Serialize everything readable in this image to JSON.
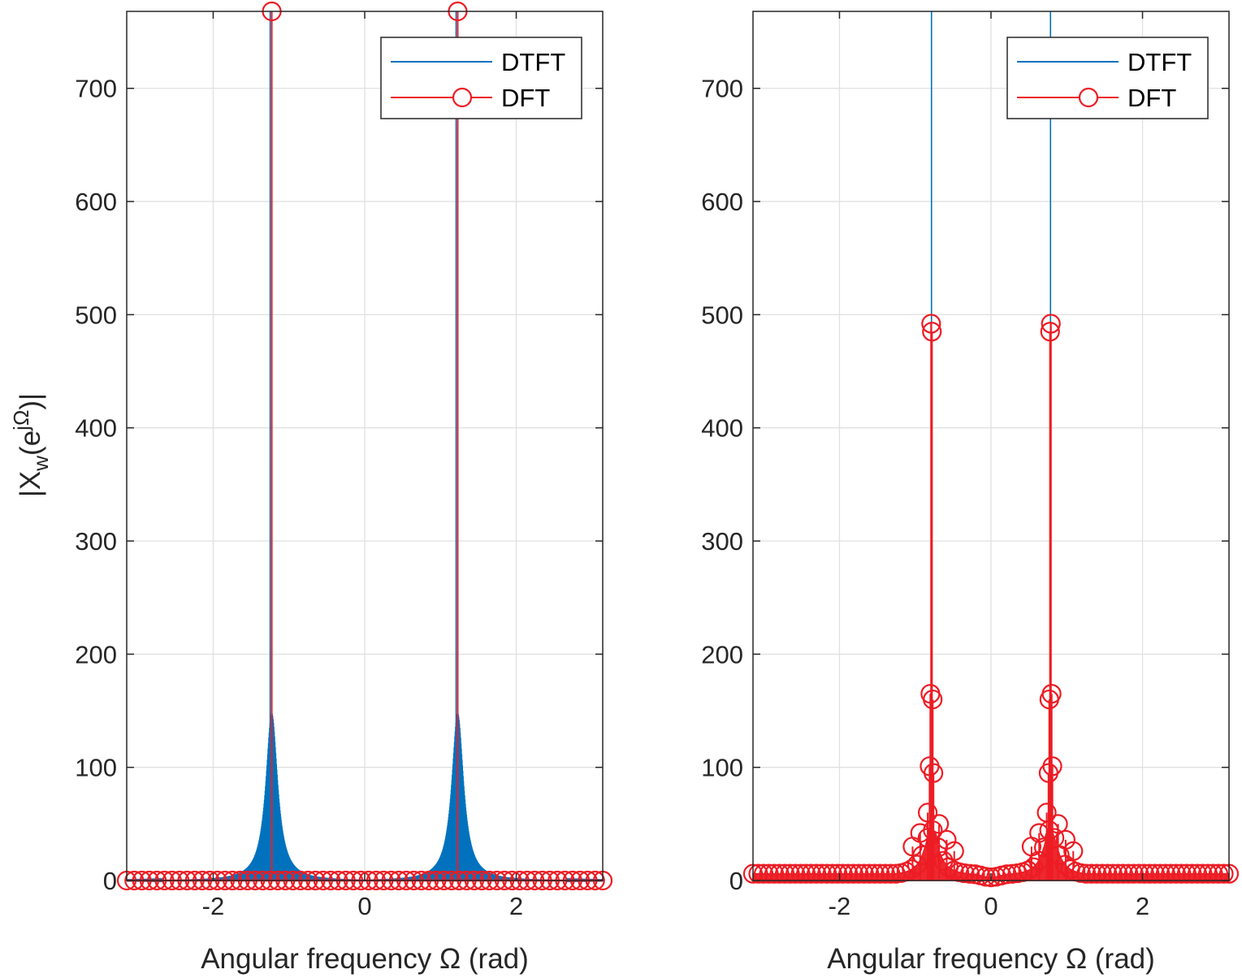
{
  "colors": {
    "dtft": "#0072BD",
    "dft": "#ED1C24",
    "axis": "#262626",
    "grid": "#E0E0E0"
  },
  "chart_data": [
    {
      "type": "line",
      "panel": "left",
      "xlabel": "Angular frequency Ω (rad)",
      "ylabel": "|Xw(e^jΩ)|",
      "ylabel_parts": {
        "main": "|X",
        "sub": "w",
        "open": "(e",
        "sup": "jΩ",
        "close": ")|"
      },
      "xlim": [
        -3.14159,
        3.14159
      ],
      "ylim": [
        0,
        768
      ],
      "xticks": [
        -2,
        0,
        2
      ],
      "yticks": [
        0,
        100,
        200,
        300,
        400,
        500,
        600,
        700
      ],
      "xtick_labels": [
        "-2",
        "0",
        "2"
      ],
      "ytick_labels": [
        "0",
        "100",
        "200",
        "300",
        "400",
        "500",
        "600",
        "700"
      ],
      "grid": true,
      "legend": {
        "location": "top-right",
        "entries": [
          "DTFT",
          "DFT"
        ]
      },
      "series": [
        {
          "name": "DTFT",
          "style": "line",
          "peaks": [
            -1.2271,
            1.2271
          ],
          "peak_value": 768,
          "first_sidelobe": 165,
          "dense_envelope": true
        },
        {
          "name": "DFT",
          "style": "stem-circle",
          "N": 64,
          "peaks": [
            -1.2271,
            1.2271
          ],
          "peak_value": 768,
          "floor_value": 0
        }
      ]
    },
    {
      "type": "line",
      "panel": "right",
      "xlabel": "Angular frequency Ω (rad)",
      "xlim": [
        -3.14159,
        3.14159
      ],
      "ylim": [
        0,
        768
      ],
      "xticks": [
        -2,
        0,
        2
      ],
      "yticks": [
        0,
        100,
        200,
        300,
        400,
        500,
        600,
        700
      ],
      "xtick_labels": [
        "-2",
        "0",
        "2"
      ],
      "ytick_labels": [
        "0",
        "100",
        "200",
        "300",
        "400",
        "500",
        "600",
        "700"
      ],
      "grid": true,
      "legend": {
        "location": "top-right",
        "entries": [
          "DTFT",
          "DFT"
        ]
      },
      "series": [
        {
          "name": "DTFT",
          "style": "line",
          "peaks": [
            -0.7854,
            0.7854
          ],
          "peak_value": 768
        },
        {
          "name": "DFT",
          "style": "stem-circle",
          "N": 64,
          "peaks": [
            -0.7854,
            0.7854
          ],
          "peak_value": 492,
          "highlight_points": [
            {
              "x": -0.79,
              "y": 492
            },
            {
              "x": -0.78,
              "y": 485
            },
            {
              "x": -0.8,
              "y": 165
            },
            {
              "x": -0.77,
              "y": 160
            },
            {
              "x": -0.81,
              "y": 101
            },
            {
              "x": -0.76,
              "y": 95
            },
            {
              "x": 0.79,
              "y": 492
            },
            {
              "x": 0.78,
              "y": 485
            },
            {
              "x": 0.8,
              "y": 165
            },
            {
              "x": 0.77,
              "y": 160
            },
            {
              "x": 0.81,
              "y": 101
            },
            {
              "x": 0.76,
              "y": 95
            }
          ],
          "edge_value": 6,
          "center_value": 2
        }
      ]
    }
  ]
}
